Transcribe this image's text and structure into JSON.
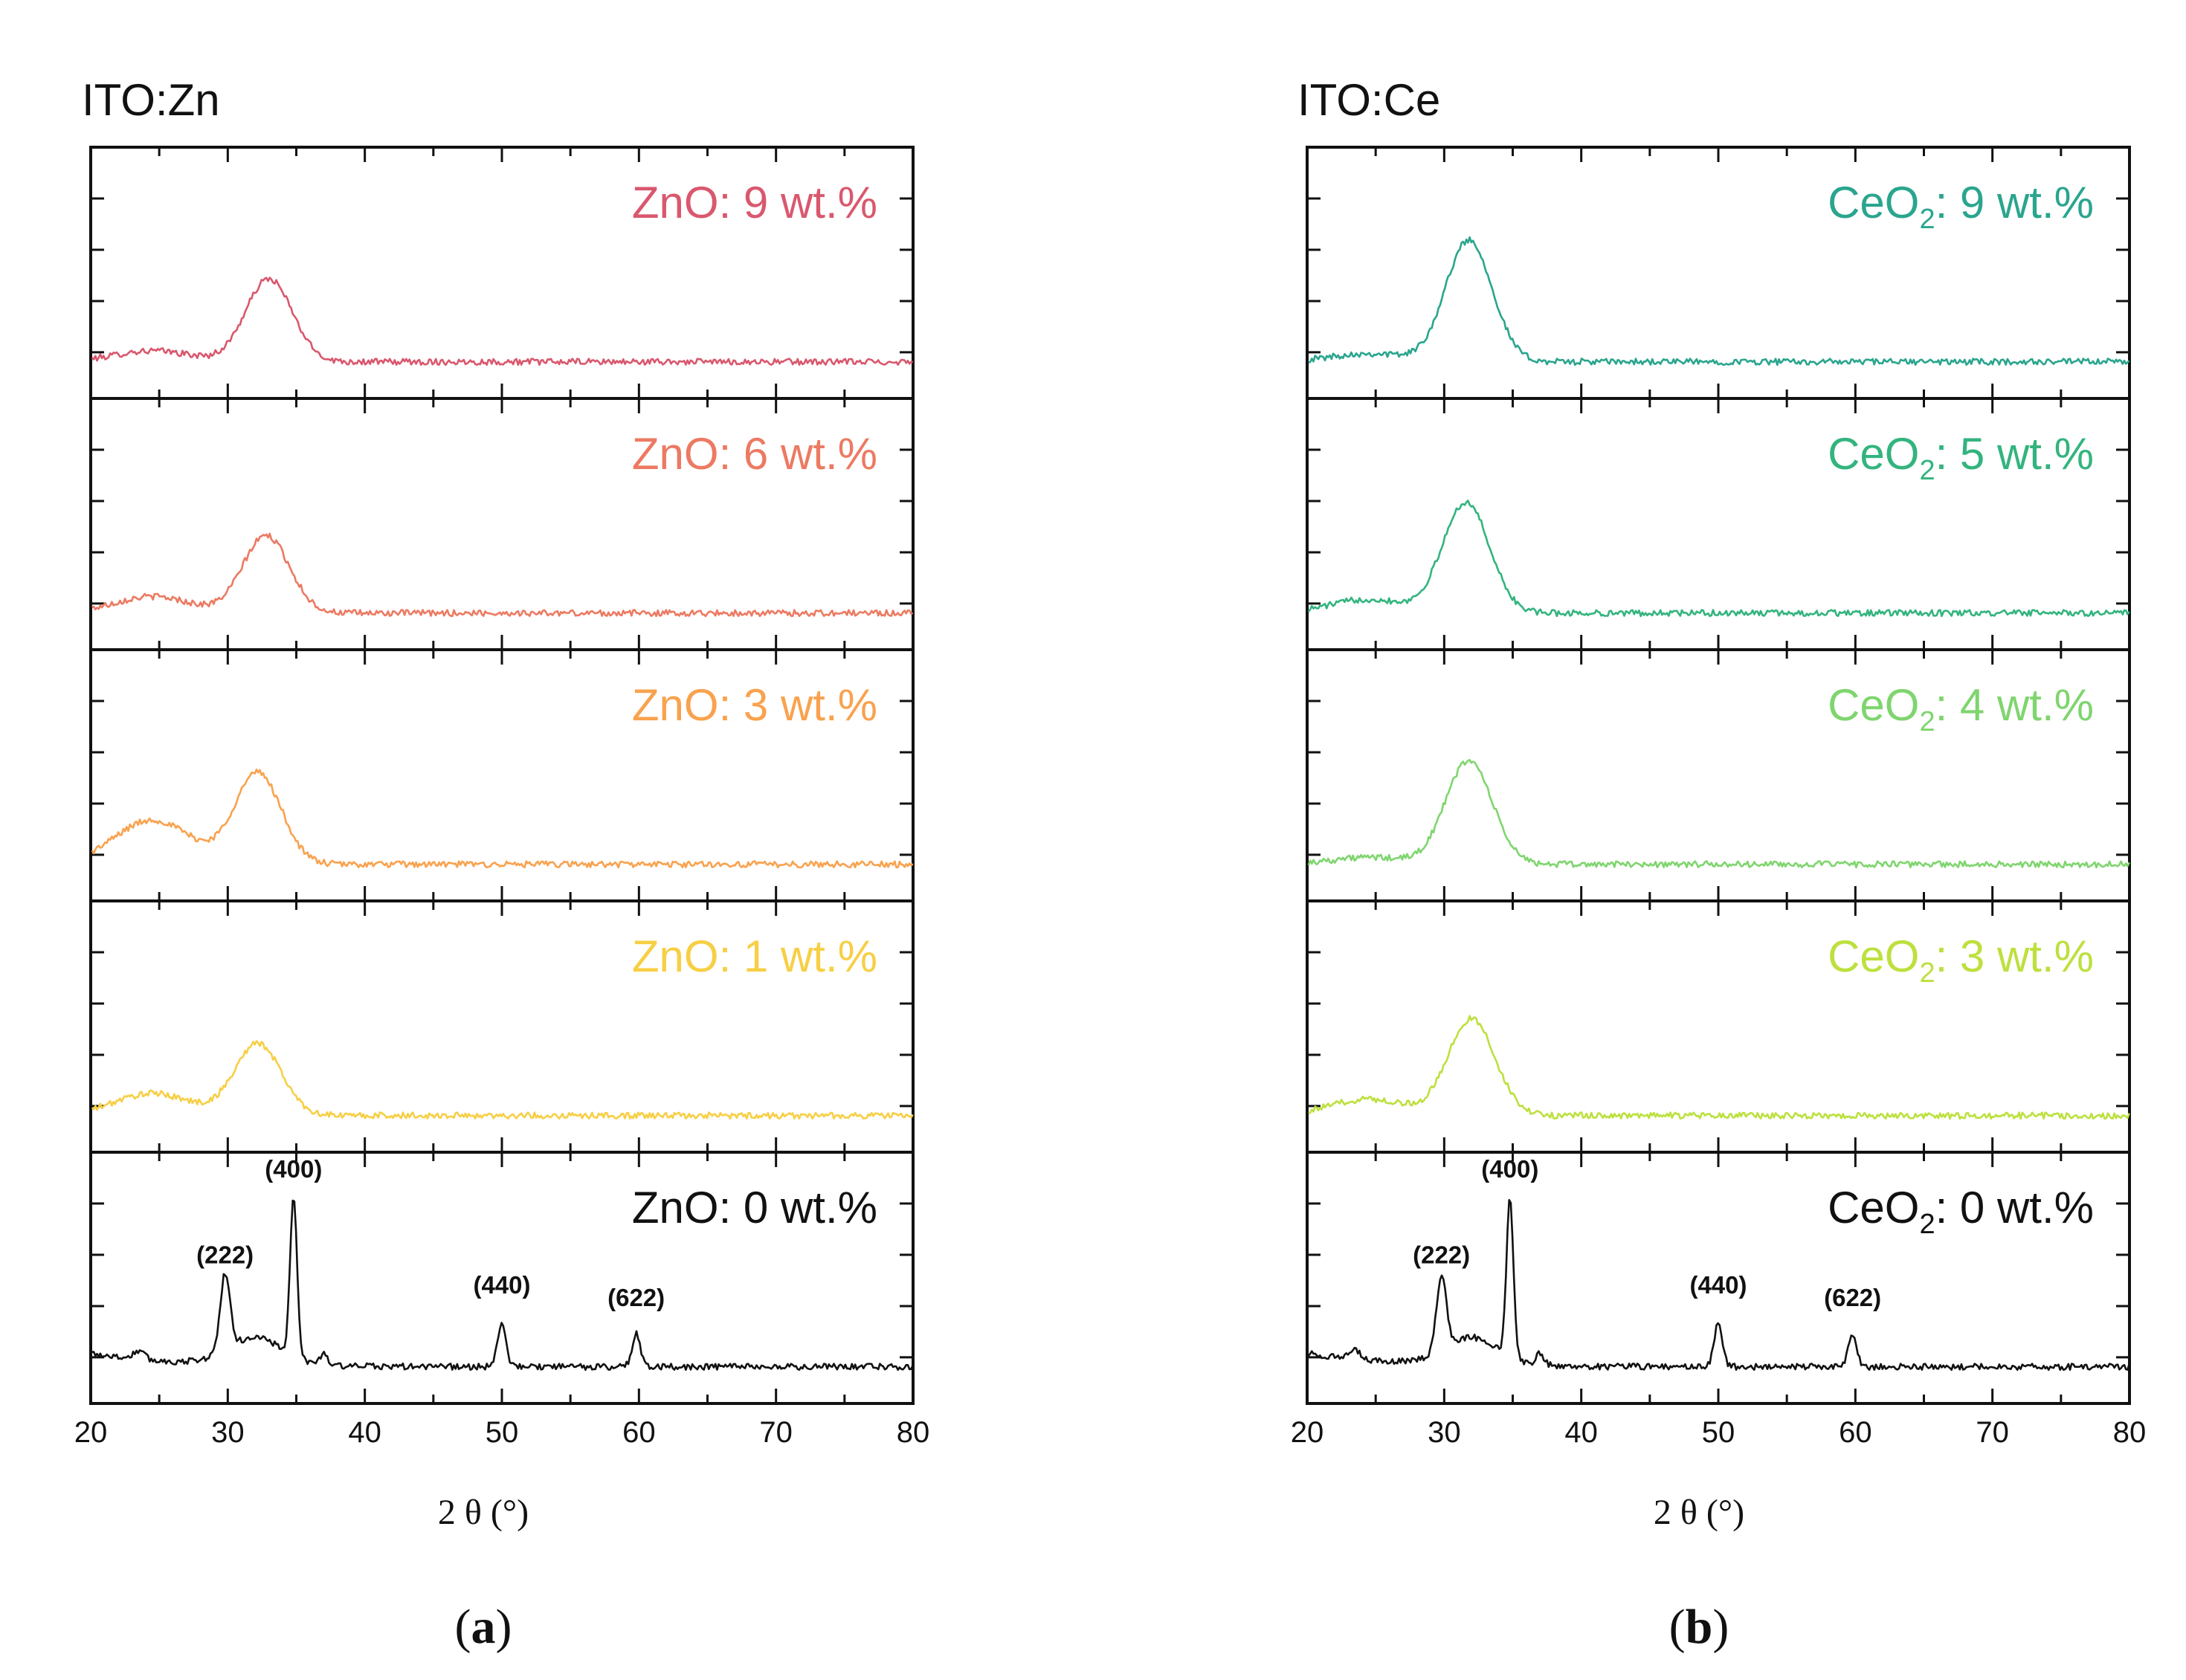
{
  "chart_data": [
    {
      "type": "line",
      "title": "ITO:Zn",
      "caption_letter": "a",
      "xlabel": "2 θ (°)",
      "xlim": [
        20,
        80
      ],
      "xticks": [
        "20",
        "30",
        "40",
        "50",
        "60",
        "70",
        "80"
      ],
      "ylabel": "",
      "yaxis_ticks_unlabeled": true,
      "panels": [
        {
          "label_prefix": "ZnO",
          "label_sub": "",
          "label_value": ": 9 wt.%",
          "color": "#d9586e",
          "broad_center": 33,
          "broad_height": 0.6,
          "low_shoulder": 0.08,
          "crystalline": false
        },
        {
          "label_prefix": "ZnO",
          "label_sub": "",
          "label_value": ": 6 wt.%",
          "color": "#ec7a62",
          "broad_center": 32.8,
          "broad_height": 0.56,
          "low_shoulder": 0.12,
          "crystalline": false
        },
        {
          "label_prefix": "ZnO",
          "label_sub": "",
          "label_value": ": 3 wt.%",
          "color": "#f9a24e",
          "broad_center": 32.2,
          "broad_height": 0.66,
          "low_shoulder": 0.32,
          "crystalline": false
        },
        {
          "label_prefix": "ZnO",
          "label_sub": "",
          "label_value": ": 1 wt.%",
          "color": "#f7cf45",
          "broad_center": 32.2,
          "broad_height": 0.52,
          "low_shoulder": 0.16,
          "crystalline": false
        },
        {
          "label_prefix": "ZnO",
          "label_sub": "",
          "label_value": ": 0 wt.%",
          "color": "#111111",
          "crystalline": true,
          "peaks": [
            {
              "label": "(222)",
              "x": 29.8
            },
            {
              "label": "(400)",
              "x": 34.8
            },
            {
              "label": "(440)",
              "x": 50.0
            },
            {
              "label": "(622)",
              "x": 59.8
            }
          ]
        }
      ]
    },
    {
      "type": "line",
      "title": "ITO:Ce",
      "caption_letter": "b",
      "xlabel": "2 θ (°)",
      "xlim": [
        20,
        80
      ],
      "xticks": [
        "20",
        "30",
        "40",
        "50",
        "60",
        "70",
        "80"
      ],
      "ylabel": "",
      "yaxis_ticks_unlabeled": true,
      "panels": [
        {
          "label_prefix": "CeO",
          "label_sub": "2",
          "label_value": ": 9 wt.%",
          "color": "#2aa58e",
          "broad_center": 31.8,
          "broad_height": 0.88,
          "low_shoulder": 0.06,
          "crystalline": false
        },
        {
          "label_prefix": "CeO",
          "label_sub": "2",
          "label_value": ": 5 wt.%",
          "color": "#33b47e",
          "broad_center": 31.6,
          "broad_height": 0.8,
          "low_shoulder": 0.1,
          "crystalline": false
        },
        {
          "label_prefix": "CeO",
          "label_sub": "2",
          "label_value": ": 4 wt.%",
          "color": "#7fd56e",
          "broad_center": 31.8,
          "broad_height": 0.75,
          "low_shoulder": 0.05,
          "crystalline": false
        },
        {
          "label_prefix": "CeO",
          "label_sub": "2",
          "label_value": ": 3 wt.%",
          "color": "#bde03e",
          "broad_center": 32.0,
          "broad_height": 0.7,
          "low_shoulder": 0.12,
          "crystalline": false
        },
        {
          "label_prefix": "CeO",
          "label_sub": "2",
          "label_value": ": 0 wt.%",
          "color": "#111111",
          "crystalline": true,
          "peaks": [
            {
              "label": "(222)",
              "x": 29.8
            },
            {
              "label": "(400)",
              "x": 34.8
            },
            {
              "label": "(440)",
              "x": 50.0
            },
            {
              "label": "(622)",
              "x": 59.8
            }
          ]
        }
      ]
    }
  ]
}
